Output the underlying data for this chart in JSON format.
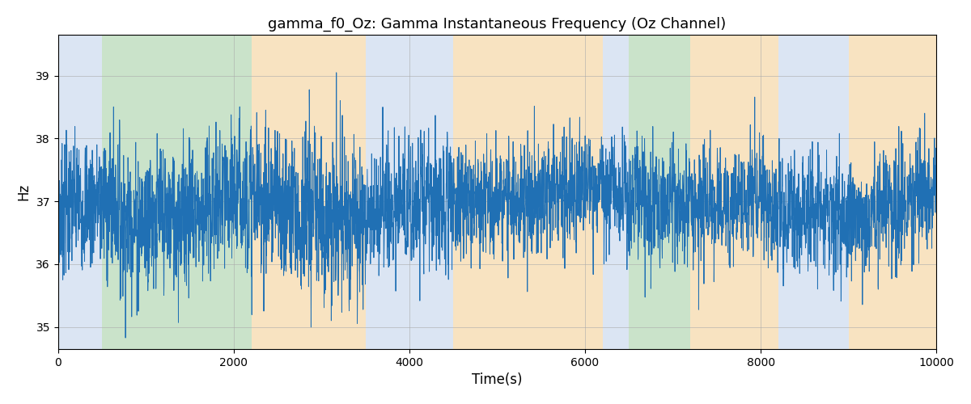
{
  "title": "gamma_f0_Oz: Gamma Instantaneous Frequency (Oz Channel)",
  "xlabel": "Time(s)",
  "ylabel": "Hz",
  "xlim": [
    0,
    10000
  ],
  "ylim": [
    34.65,
    39.65
  ],
  "yticks": [
    35,
    36,
    37,
    38,
    39
  ],
  "xticks": [
    0,
    2000,
    4000,
    6000,
    8000,
    10000
  ],
  "line_color": "#2070b4",
  "line_width": 0.7,
  "bg_regions": [
    {
      "xmin": 0,
      "xmax": 500,
      "color": "#c8d8ee",
      "alpha": 0.65
    },
    {
      "xmin": 500,
      "xmax": 2200,
      "color": "#aed4ae",
      "alpha": 0.65
    },
    {
      "xmin": 2200,
      "xmax": 3500,
      "color": "#f5d5a0",
      "alpha": 0.65
    },
    {
      "xmin": 3500,
      "xmax": 4500,
      "color": "#c8d8ee",
      "alpha": 0.65
    },
    {
      "xmin": 4500,
      "xmax": 6200,
      "color": "#f5d5a0",
      "alpha": 0.65
    },
    {
      "xmin": 6200,
      "xmax": 6500,
      "color": "#c8d8ee",
      "alpha": 0.65
    },
    {
      "xmin": 6500,
      "xmax": 7200,
      "color": "#aed4ae",
      "alpha": 0.65
    },
    {
      "xmin": 7200,
      "xmax": 8200,
      "color": "#f5d5a0",
      "alpha": 0.65
    },
    {
      "xmin": 8200,
      "xmax": 9000,
      "color": "#c8d8ee",
      "alpha": 0.65
    },
    {
      "xmin": 9000,
      "xmax": 10000,
      "color": "#f5d5a0",
      "alpha": 0.65
    }
  ],
  "n_points": 5000,
  "base_freq": 37.0,
  "seed": 7
}
